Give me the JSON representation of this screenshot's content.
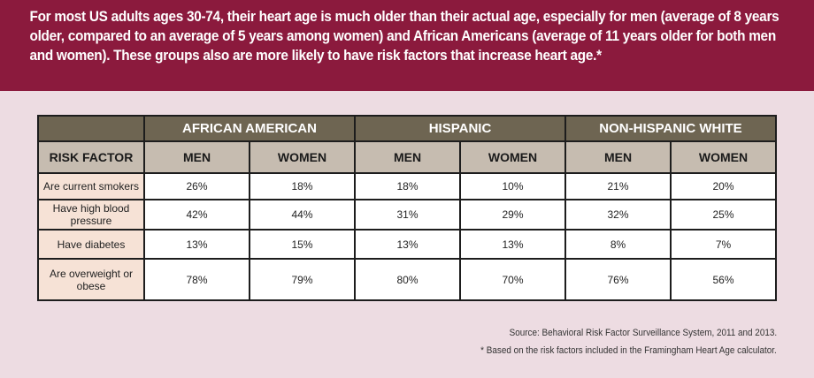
{
  "intro": "For most US adults ages 30-74, their heart age is much older than their actual age, especially for men (average of 8 years older, compared to an average of 5 years among women) and African Americans (average of 11 years older for both men and women). These groups also are more likely to have risk factors that increase heart age.*",
  "table": {
    "groups": [
      "AFRICAN AMERICAN",
      "HISPANIC",
      "NON-HISPANIC WHITE"
    ],
    "risk_header": "RISK FACTOR",
    "sub": [
      "MEN",
      "WOMEN",
      "MEN",
      "WOMEN",
      "MEN",
      "WOMEN"
    ],
    "rows": [
      {
        "label": "Are current smokers",
        "values": [
          "26%",
          "18%",
          "18%",
          "10%",
          "21%",
          "20%"
        ]
      },
      {
        "label": "Have high blood pressure",
        "values": [
          "42%",
          "44%",
          "31%",
          "29%",
          "32%",
          "25%"
        ]
      },
      {
        "label": "Have diabetes",
        "values": [
          "13%",
          "15%",
          "13%",
          "13%",
          "8%",
          "7%"
        ]
      },
      {
        "label": "Are overweight or obese",
        "values": [
          "78%",
          "79%",
          "80%",
          "70%",
          "76%",
          "56%"
        ]
      }
    ]
  },
  "source": "Source: Behavioral Risk Factor Surveillance System, 2011 and 2013.",
  "footnote": "* Based on the risk factors included in the Framingham Heart Age calculator."
}
